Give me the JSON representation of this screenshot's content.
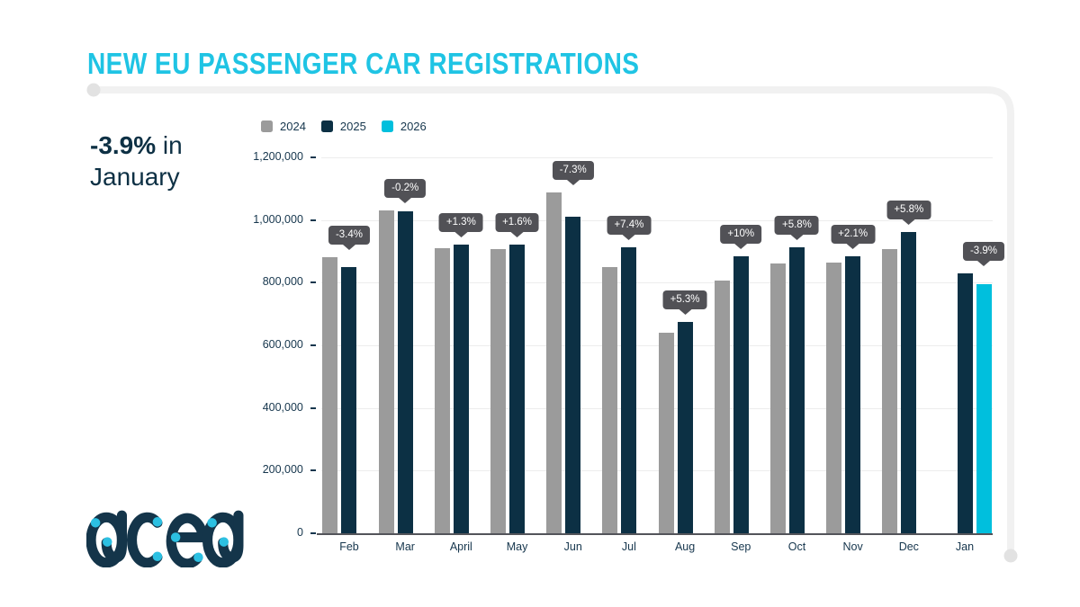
{
  "header": {
    "title": "NEW EU PASSENGER CAR REGISTRATIONS"
  },
  "highlight": {
    "value": "-3.9%",
    "text": " in January"
  },
  "brand": {
    "logo_text": "acea"
  },
  "colors": {
    "accent_cyan": "#1fc4e4",
    "dark_navy": "#0d3044",
    "tooltip_bg": "#515156",
    "grid": "#ededed",
    "frame": "#f1f1f1"
  },
  "chart_data": {
    "type": "bar",
    "title": "NEW EU PASSENGER CAR REGISTRATIONS",
    "categories": [
      "Feb",
      "Mar",
      "April",
      "May",
      "Jun",
      "Jul",
      "Aug",
      "Sep",
      "Oct",
      "Nov",
      "Dec",
      "Jan"
    ],
    "series": [
      {
        "name": "2024",
        "color": "#9b9b9b",
        "values": [
          880000,
          1030000,
          910000,
          908000,
          1088000,
          850000,
          640000,
          805000,
          862000,
          865000,
          908000,
          null
        ]
      },
      {
        "name": "2025",
        "color": "#0c3044",
        "values": [
          850000,
          1028000,
          922000,
          922000,
          1009000,
          913000,
          674000,
          885000,
          912000,
          883000,
          960000,
          828000
        ]
      },
      {
        "name": "2026",
        "color": "#00bfdd",
        "values": [
          null,
          null,
          null,
          null,
          null,
          null,
          null,
          null,
          null,
          null,
          null,
          796000
        ]
      }
    ],
    "change_labels": [
      "-3.4%",
      "-0.2%",
      "+1.3%",
      "+1.6%",
      "-7.3%",
      "+7.4%",
      "+5.3%",
      "+10%",
      "+5.8%",
      "+2.1%",
      "+5.8%",
      "-3.9%"
    ],
    "xlabel": "",
    "ylabel": "",
    "ylim": [
      0,
      1200000
    ],
    "ytick_step": 200000,
    "grid": true,
    "legend_position": "top"
  }
}
